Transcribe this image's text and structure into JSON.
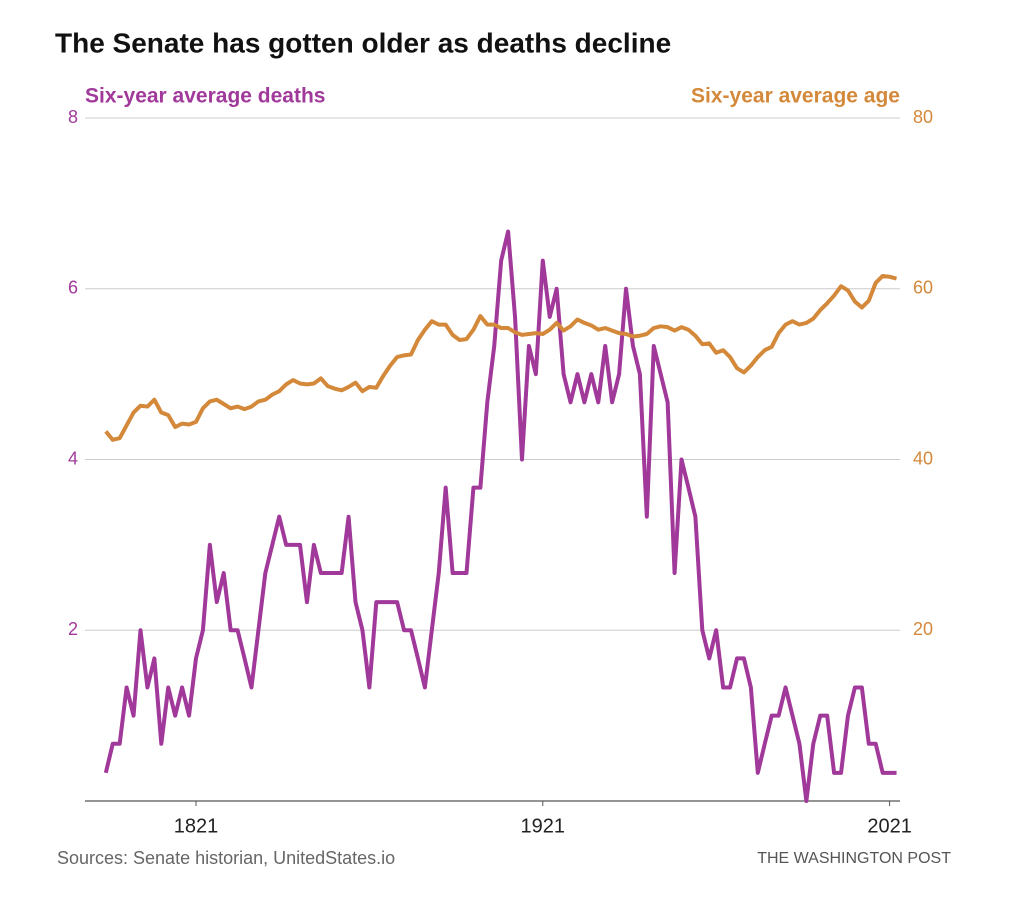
{
  "chart_data": {
    "type": "line",
    "title": "The Senate has gotten older as deaths decline",
    "source": "Sources: Senate historian, UnitedStates.io",
    "credit": "THE WASHINGTON POST",
    "x": [
      1795,
      1797,
      1799,
      1801,
      1803,
      1805,
      1807,
      1809,
      1811,
      1813,
      1815,
      1817,
      1819,
      1821,
      1823,
      1825,
      1827,
      1829,
      1831,
      1833,
      1835,
      1837,
      1839,
      1841,
      1843,
      1845,
      1847,
      1849,
      1851,
      1853,
      1855,
      1857,
      1859,
      1861,
      1863,
      1865,
      1867,
      1869,
      1871,
      1873,
      1875,
      1877,
      1879,
      1881,
      1883,
      1885,
      1887,
      1889,
      1891,
      1893,
      1895,
      1897,
      1899,
      1901,
      1903,
      1905,
      1907,
      1909,
      1911,
      1913,
      1915,
      1917,
      1919,
      1921,
      1923,
      1925,
      1927,
      1929,
      1931,
      1933,
      1935,
      1937,
      1939,
      1941,
      1943,
      1945,
      1947,
      1949,
      1951,
      1953,
      1955,
      1957,
      1959,
      1961,
      1963,
      1965,
      1967,
      1969,
      1971,
      1973,
      1975,
      1977,
      1979,
      1981,
      1983,
      1985,
      1987,
      1989,
      1991,
      1993,
      1995,
      1997,
      1999,
      2001,
      2003,
      2005,
      2007,
      2009,
      2011,
      2013,
      2015,
      2017,
      2019,
      2021,
      2023
    ],
    "series": [
      {
        "name": "Six-year average deaths",
        "color": "#a0399a",
        "axis": "y",
        "values": [
          0.33,
          0.67,
          0.67,
          1.33,
          1,
          2,
          1.33,
          1.67,
          0.67,
          1.33,
          1,
          1.33,
          1,
          1.67,
          2,
          3,
          2.33,
          2.67,
          2,
          2,
          1.67,
          1.33,
          2,
          2.67,
          3,
          3.33,
          3,
          3,
          3,
          2.33,
          3,
          2.67,
          2.67,
          2.67,
          2.67,
          3.33,
          2.33,
          2,
          1.33,
          2.33,
          2.33,
          2.33,
          2.33,
          2,
          2,
          1.67,
          1.33,
          2,
          2.67,
          3.67,
          2.67,
          2.67,
          2.67,
          3.67,
          3.67,
          4.67,
          5.33,
          6.33,
          6.67,
          5.67,
          4,
          5.33,
          5,
          6.33,
          5.67,
          6,
          5,
          4.67,
          5,
          4.67,
          5,
          4.67,
          5.33,
          4.67,
          5,
          6,
          5.33,
          5,
          3.33,
          5.33,
          5,
          4.67,
          2.67,
          4,
          3.67,
          3.33,
          2,
          1.67,
          2,
          1.33,
          1.33,
          1.67,
          1.67,
          1.33,
          0.33,
          0.67,
          1,
          1,
          1.33,
          1,
          0.67,
          0,
          0.67,
          1,
          1,
          0.33,
          0.33,
          1,
          1.33,
          1.33,
          0.67,
          0.67,
          0.33,
          0.33,
          0.33
        ]
      },
      {
        "name": "Six-year average age",
        "color": "#d4893a",
        "axis": "y2",
        "values": [
          43.3,
          42.3,
          42.5,
          44,
          45.5,
          46.3,
          46.2,
          47,
          45.5,
          45.2,
          43.8,
          44.2,
          44.1,
          44.4,
          46,
          46.8,
          47,
          46.5,
          46,
          46.2,
          45.9,
          46.2,
          46.8,
          47,
          47.6,
          48,
          48.8,
          49.3,
          48.9,
          48.8,
          48.9,
          49.5,
          48.6,
          48.3,
          48.1,
          48.5,
          49,
          48,
          48.5,
          48.4,
          49.8,
          51,
          52,
          52.2,
          52.3,
          54,
          55.2,
          56.2,
          55.8,
          55.8,
          54.6,
          54,
          54.1,
          55.2,
          56.8,
          55.8,
          55.8,
          55.4,
          55.4,
          54.9,
          54.6,
          54.7,
          54.8,
          54.7,
          55.2,
          56,
          55.1,
          55.6,
          56.4,
          56,
          55.7,
          55.2,
          55.4,
          55.1,
          54.8,
          54.7,
          54.4,
          54.5,
          54.7,
          55.4,
          55.6,
          55.5,
          55.1,
          55.5,
          55.2,
          54.5,
          53.5,
          53.6,
          52.5,
          52.8,
          52,
          50.7,
          50.2,
          51,
          52,
          52.8,
          53.2,
          54.8,
          55.8,
          56.2,
          55.8,
          56,
          56.5,
          57.5,
          58.3,
          59.2,
          60.3,
          59.8,
          58.5,
          57.8,
          58.6,
          60.7,
          61.5,
          61.4,
          61.2
        ]
      }
    ],
    "xlim": [
      1789,
      2024
    ],
    "xticks": [
      1821,
      1921,
      2021
    ],
    "ylim": [
      0,
      8
    ],
    "yticks": [
      2,
      4,
      6,
      8
    ],
    "y2lim": [
      0,
      80
    ],
    "y2ticks": [
      20,
      40,
      60,
      80
    ],
    "grid": true
  }
}
